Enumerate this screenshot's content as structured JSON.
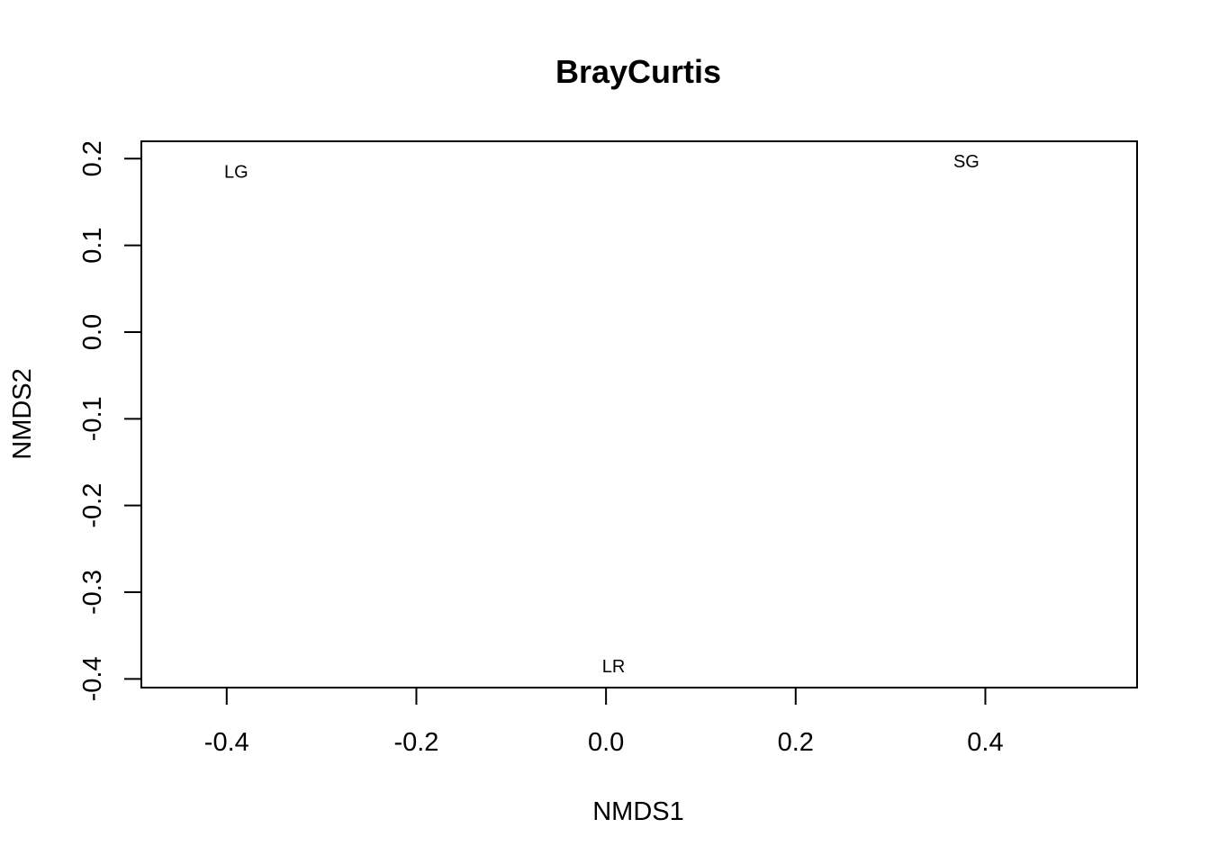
{
  "chart_data": {
    "type": "scatter",
    "title": "BrayCurtis",
    "xlabel": "NMDS1",
    "ylabel": "NMDS2",
    "xlim": [
      -0.49,
      0.56
    ],
    "ylim": [
      -0.41,
      0.22
    ],
    "x_ticks": [
      -0.4,
      -0.2,
      0.0,
      0.2,
      0.4
    ],
    "x_tick_labels": [
      "-0.4",
      "-0.2",
      "0.0",
      "0.2",
      "0.4"
    ],
    "y_ticks": [
      -0.4,
      -0.3,
      -0.2,
      -0.1,
      0.0,
      0.1,
      0.2
    ],
    "y_tick_labels": [
      "-0.4",
      "-0.3",
      "-0.2",
      "-0.1",
      "0.0",
      "0.1",
      "0.2"
    ],
    "points": [
      {
        "label": "LG",
        "x": -0.39,
        "y": 0.185
      },
      {
        "label": "SG",
        "x": 0.38,
        "y": 0.197
      },
      {
        "label": "LR",
        "x": 0.008,
        "y": -0.385
      }
    ],
    "grid": false,
    "legend": "none",
    "text_color": "#000000",
    "background": "#ffffff"
  }
}
